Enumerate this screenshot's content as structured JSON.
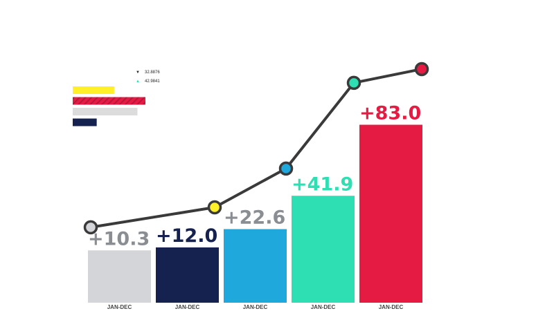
{
  "chart_data": {
    "type": "bar",
    "title": "",
    "xlabel": "",
    "ylabel": "",
    "categories": [
      "JAN-DEC",
      "JAN-DEC",
      "JAN-DEC",
      "JAN-DEC",
      "JAN-DEC"
    ],
    "series": [
      {
        "name": "bars",
        "values": [
          10.3,
          12.0,
          22.6,
          41.9,
          83.0
        ],
        "labels": [
          "+10.3",
          "+12.0",
          "+22.6",
          "+41.9",
          "+83.0"
        ],
        "colors": [
          "#d3d5d8",
          "#15224f",
          "#1fa8db",
          "#2ddfb2",
          "#e51b44"
        ],
        "label_colors": [
          "#8a8d92",
          "#15224f",
          "#8a8d92",
          "#2ddfb2",
          "#e51b44"
        ]
      },
      {
        "name": "line",
        "type": "line",
        "values": [
          20.8,
          28.2,
          42.6,
          74.4,
          79.5
        ],
        "marker_colors": [
          "#d3d5d8",
          "#fff02a",
          "#1fa8db",
          "#2ddfb2",
          "#e51b44"
        ],
        "line_color": "#3a3a3a"
      }
    ],
    "legend": {
      "placement": "top-left",
      "entries": [
        {
          "marker": "triangle-down",
          "text": "32.8876",
          "color": "#222222"
        },
        {
          "marker": "triangle-up",
          "text": "42.9841",
          "color": "#2ddfb2"
        }
      ],
      "bars": [
        {
          "color": "#fff02a",
          "value": 0.57
        },
        {
          "color": "#e51b44",
          "value": 1.0,
          "pattern": "hatched"
        },
        {
          "color": "#dcdcdc",
          "value": 0.89
        },
        {
          "color": "#15224f",
          "value": 0.33
        }
      ]
    }
  }
}
